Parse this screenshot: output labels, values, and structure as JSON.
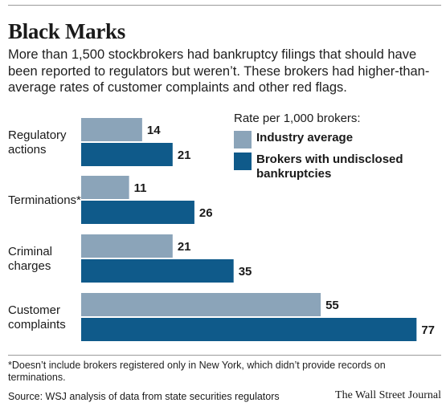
{
  "title": "Black Marks",
  "subtitle": "More than 1,500 stockbrokers had bankruptcy filings that should have been reported to regulators but weren’t. These brokers had higher-than-average rates of customer complaints and other red flags.",
  "legend": {
    "title": "Rate per 1,000 brokers:",
    "items": [
      "Industry average",
      "Brokers with undisclosed bankruptcies"
    ]
  },
  "colors": {
    "industry": "#8ba4b9",
    "brokers": "#0f5a8a",
    "text": "#1a1a1a"
  },
  "footnote": "*Doesn’t include brokers registered only in New York, which didn’t provide records on terminations.",
  "source": "Source: WSJ analysis of data from state securities regulators",
  "brand": "The Wall Street Journal",
  "chart_data": {
    "type": "bar",
    "orientation": "horizontal",
    "title": "Black Marks",
    "categories": [
      [
        "Regulatory",
        "actions"
      ],
      [
        "Terminations*"
      ],
      [
        "Criminal",
        "charges"
      ],
      [
        "Customer",
        "complaints"
      ]
    ],
    "series": [
      {
        "name": "Industry average",
        "values": [
          14,
          11,
          21,
          55
        ]
      },
      {
        "name": "Brokers with undisclosed bankruptcies",
        "values": [
          21,
          26,
          35,
          77
        ]
      }
    ],
    "xlim": [
      0,
      77
    ],
    "grid": false,
    "legend_position": "top-right"
  }
}
